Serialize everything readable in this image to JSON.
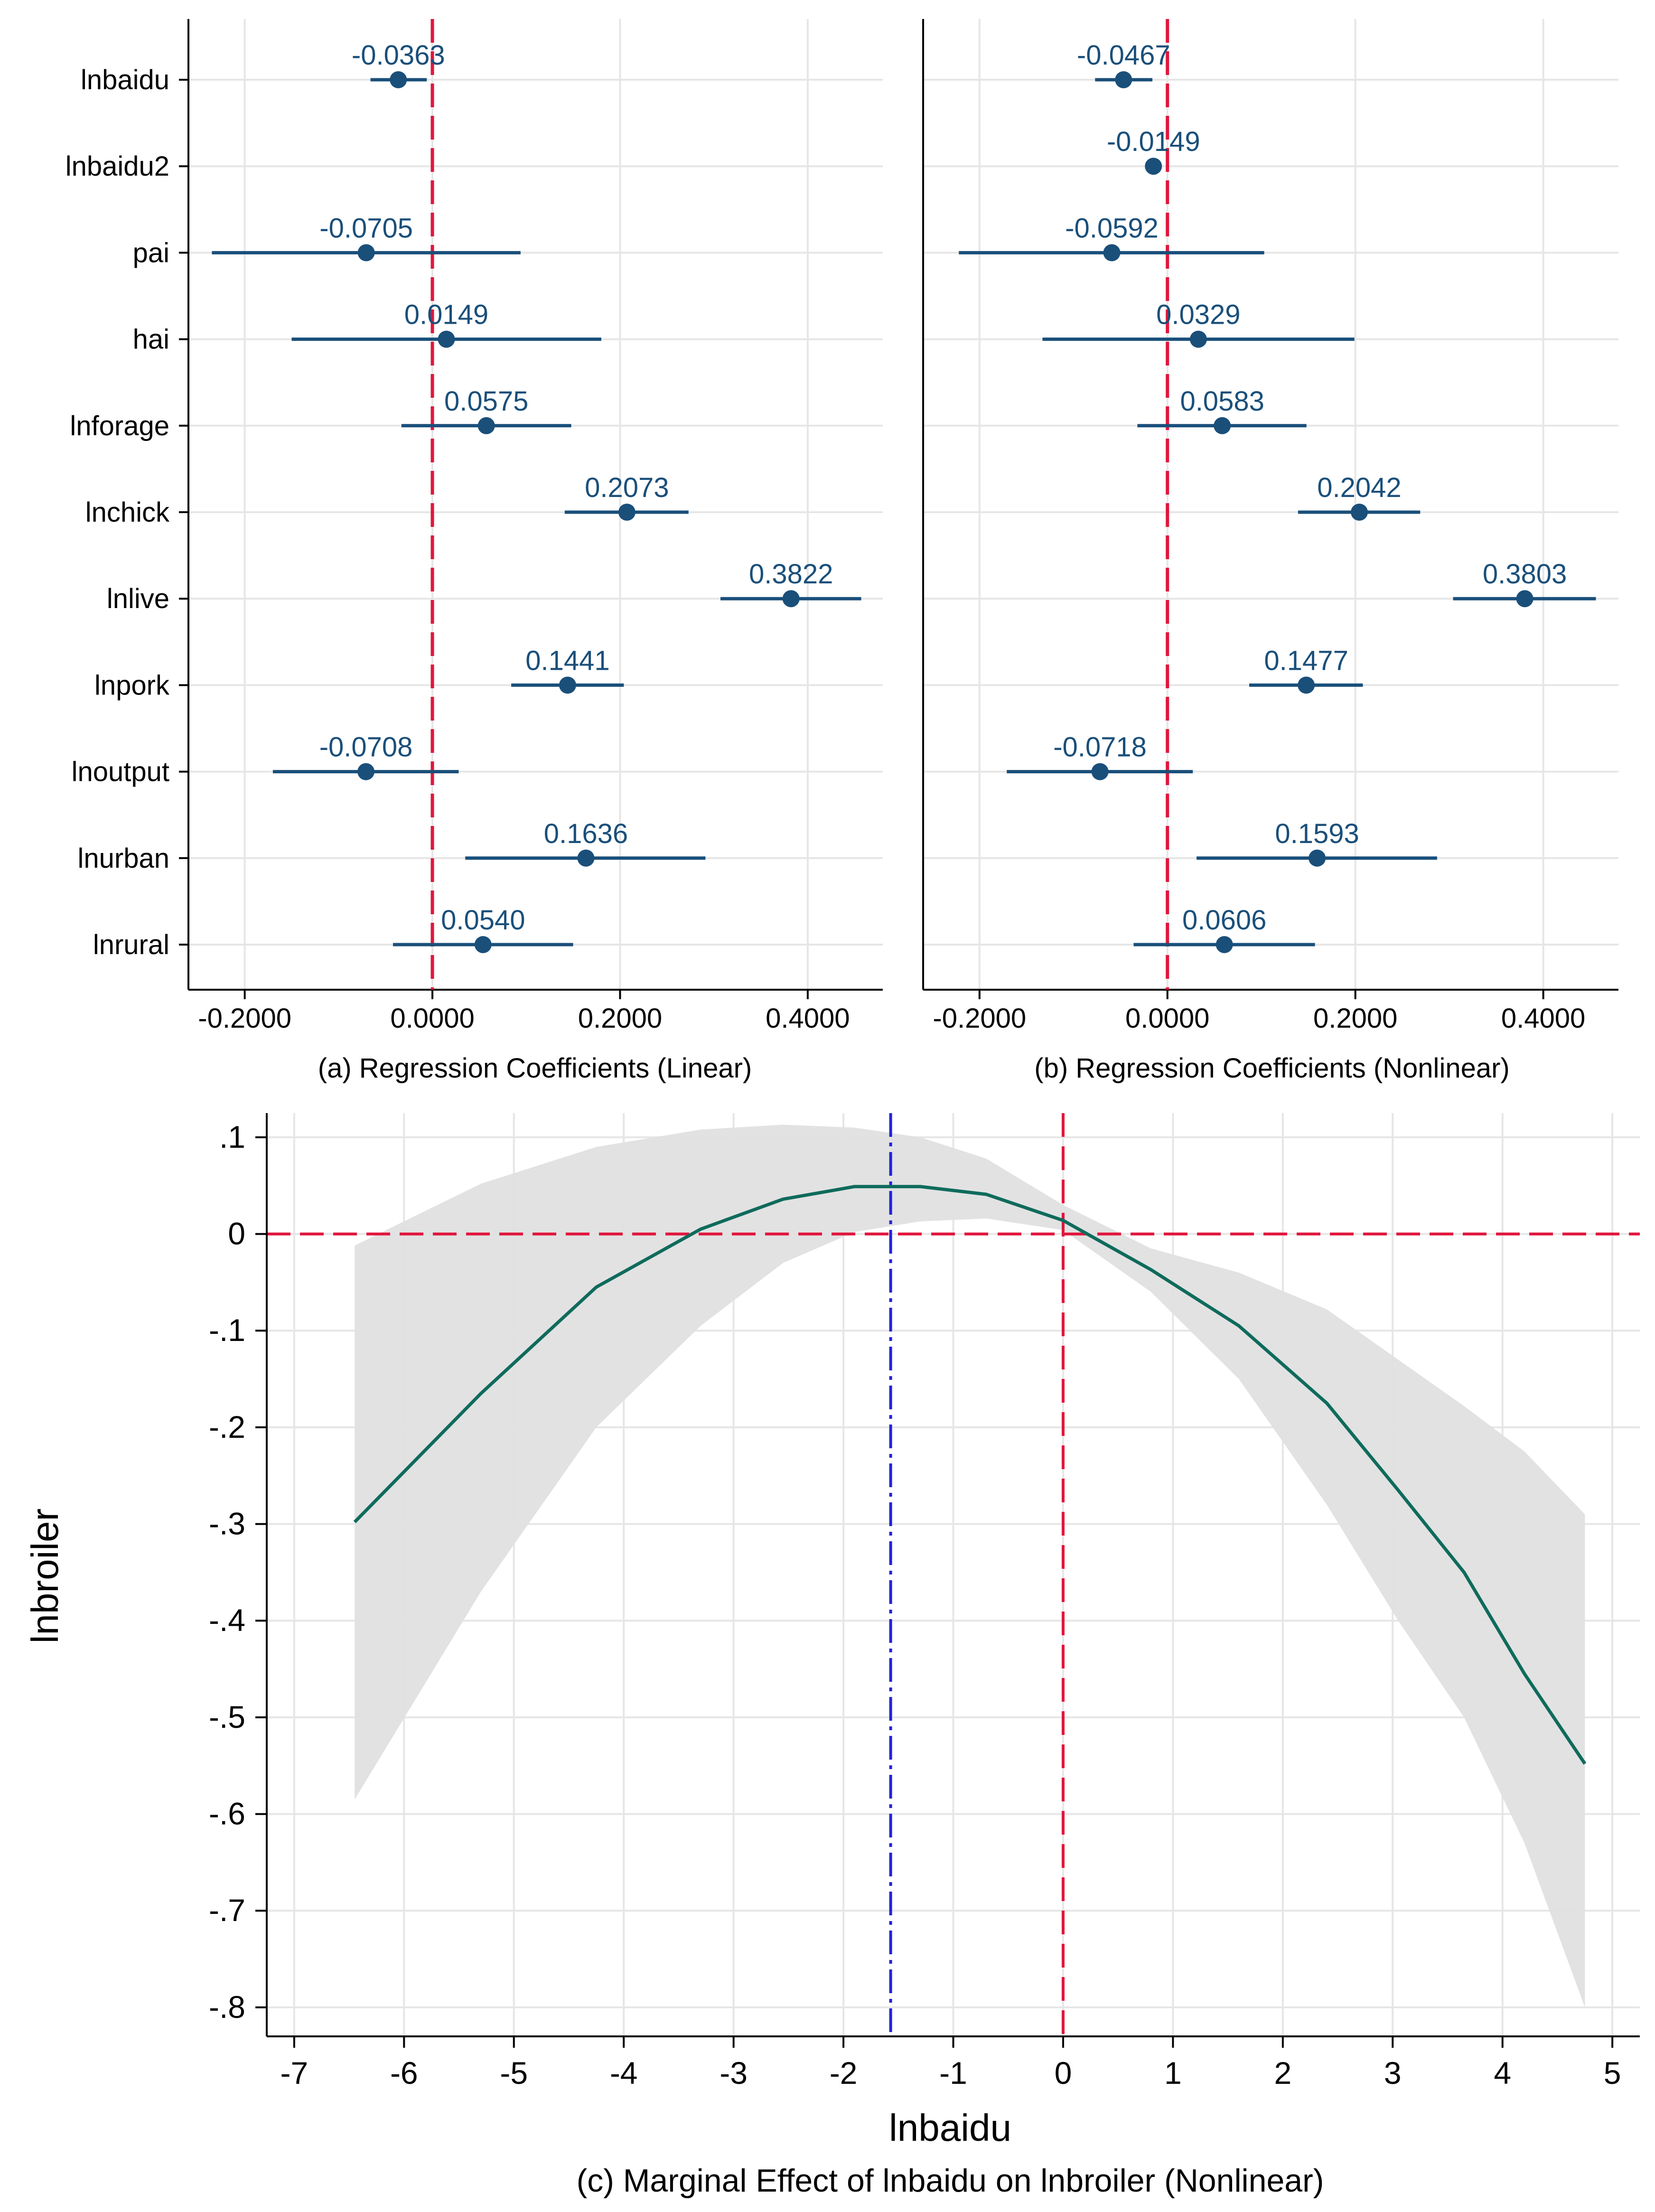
{
  "colors": {
    "series": "#1a4f7a",
    "zero_line": "#e0163c",
    "curve": "#0f6b5c",
    "band": "#e0e0e0",
    "turning_point": "#2222dd",
    "grid": "#e6e6e6"
  },
  "chart_data": [
    {
      "type": "coefficient",
      "id": "a",
      "caption": "(a) Regression Coefficients (Linear)",
      "xlim": [
        -0.26,
        0.48
      ],
      "x_ticks": [
        "-0.2000",
        "0.0000",
        "0.2000",
        "0.4000"
      ],
      "x_tick_values": [
        -0.2,
        0.0,
        0.2,
        0.4
      ],
      "points": [
        {
          "variable": "lnbaidu",
          "coef": -0.0363,
          "label": "-0.0363",
          "ci": [
            -0.066,
            -0.006
          ]
        },
        {
          "variable": "pai",
          "coef": -0.0705,
          "label": "-0.0705",
          "ci": [
            -0.235,
            0.094
          ]
        },
        {
          "variable": "hai",
          "coef": 0.0149,
          "label": "0.0149",
          "ci": [
            -0.15,
            0.18
          ]
        },
        {
          "variable": "lnforage",
          "coef": 0.0575,
          "label": "0.0575",
          "ci": [
            -0.033,
            0.148
          ]
        },
        {
          "variable": "lnchick",
          "coef": 0.2073,
          "label": "0.2073",
          "ci": [
            0.141,
            0.273
          ]
        },
        {
          "variable": "lnlive",
          "coef": 0.3822,
          "label": "0.3822",
          "ci": [
            0.307,
            0.457
          ]
        },
        {
          "variable": "lnpork",
          "coef": 0.1441,
          "label": "0.1441",
          "ci": [
            0.084,
            0.204
          ]
        },
        {
          "variable": "lnoutput",
          "coef": -0.0708,
          "label": "-0.0708",
          "ci": [
            -0.17,
            0.028
          ]
        },
        {
          "variable": "lnurban",
          "coef": 0.1636,
          "label": "0.1636",
          "ci": [
            0.035,
            0.291
          ]
        },
        {
          "variable": "lnrural",
          "coef": 0.054,
          "label": "0.0540",
          "ci": [
            -0.042,
            0.15
          ]
        }
      ]
    },
    {
      "type": "coefficient",
      "id": "b",
      "caption": "(b) Regression Coefficients (Nonlinear)",
      "xlim": [
        -0.26,
        0.48
      ],
      "x_ticks": [
        "-0.2000",
        "0.0000",
        "0.2000",
        "0.4000"
      ],
      "x_tick_values": [
        -0.2,
        0.0,
        0.2,
        0.4
      ],
      "points": [
        {
          "variable": "lnbaidu",
          "coef": -0.0467,
          "label": "-0.0467",
          "ci": [
            -0.077,
            -0.016
          ]
        },
        {
          "variable": "lnbaidu2",
          "coef": -0.0149,
          "label": "-0.0149",
          "ci": [
            -0.017,
            -0.013
          ]
        },
        {
          "variable": "pai",
          "coef": -0.0592,
          "label": "-0.0592",
          "ci": [
            -0.222,
            0.103
          ]
        },
        {
          "variable": "hai",
          "coef": 0.0329,
          "label": "0.0329",
          "ci": [
            -0.133,
            0.199
          ]
        },
        {
          "variable": "lnforage",
          "coef": 0.0583,
          "label": "0.0583",
          "ci": [
            -0.032,
            0.148
          ]
        },
        {
          "variable": "lnchick",
          "coef": 0.2042,
          "label": "0.2042",
          "ci": [
            0.139,
            0.269
          ]
        },
        {
          "variable": "lnlive",
          "coef": 0.3803,
          "label": "0.3803",
          "ci": [
            0.304,
            0.456
          ]
        },
        {
          "variable": "lnpork",
          "coef": 0.1477,
          "label": "0.1477",
          "ci": [
            0.087,
            0.208
          ]
        },
        {
          "variable": "lnoutput",
          "coef": -0.0718,
          "label": "-0.0718",
          "ci": [
            -0.171,
            0.027
          ]
        },
        {
          "variable": "lnurban",
          "coef": 0.1593,
          "label": "0.1593",
          "ci": [
            0.031,
            0.287
          ]
        },
        {
          "variable": "lnrural",
          "coef": 0.0606,
          "label": "0.0606",
          "ci": [
            -0.036,
            0.157
          ]
        }
      ]
    },
    {
      "type": "line",
      "id": "c",
      "caption": "(c) Marginal Effect of lnbaidu on lnbroiler (Nonlinear)",
      "xlabel": "lnbaidu",
      "ylabel": "lnbroiler",
      "xlim": [
        -7.25,
        5.25
      ],
      "ylim": [
        -0.83,
        0.125
      ],
      "x_ticks": [
        "-7",
        "-6",
        "-5",
        "-4",
        "-3",
        "-2",
        "-1",
        "0",
        "1",
        "2",
        "3",
        "4",
        "5"
      ],
      "x_tick_values": [
        -7,
        -6,
        -5,
        -4,
        -3,
        -2,
        -1,
        0,
        1,
        2,
        3,
        4,
        5
      ],
      "y_ticks": [
        ".1",
        "0",
        "-.1",
        "-.2",
        "-.3",
        "-.4",
        "-.5",
        "-.6",
        "-.7",
        "-.8"
      ],
      "y_tick_values": [
        0.1,
        0,
        -0.1,
        -0.2,
        -0.3,
        -0.4,
        -0.5,
        -0.6,
        -0.7,
        -0.8
      ],
      "turning_point_x": -1.57,
      "x": [
        -6.45,
        -5.3,
        -4.25,
        -3.3,
        -2.55,
        -1.9,
        -1.3,
        -0.7,
        0,
        0.8,
        1.6,
        2.4,
        3.05,
        3.65,
        4.2,
        4.75
      ],
      "estimate": [
        -0.298,
        -0.165,
        -0.055,
        0.005,
        0.036,
        0.049,
        0.049,
        0.041,
        0.014,
        -0.037,
        -0.095,
        -0.175,
        -0.265,
        -0.35,
        -0.455,
        -0.548
      ],
      "ci_lower": [
        -0.585,
        -0.37,
        -0.2,
        -0.095,
        -0.03,
        0.002,
        0.013,
        0.016,
        0.004,
        -0.06,
        -0.15,
        -0.28,
        -0.4,
        -0.5,
        -0.63,
        -0.8
      ],
      "ci_upper": [
        -0.012,
        0.052,
        0.09,
        0.108,
        0.113,
        0.11,
        0.1,
        0.078,
        0.03,
        -0.015,
        -0.04,
        -0.078,
        -0.13,
        -0.178,
        -0.225,
        -0.29
      ]
    }
  ]
}
